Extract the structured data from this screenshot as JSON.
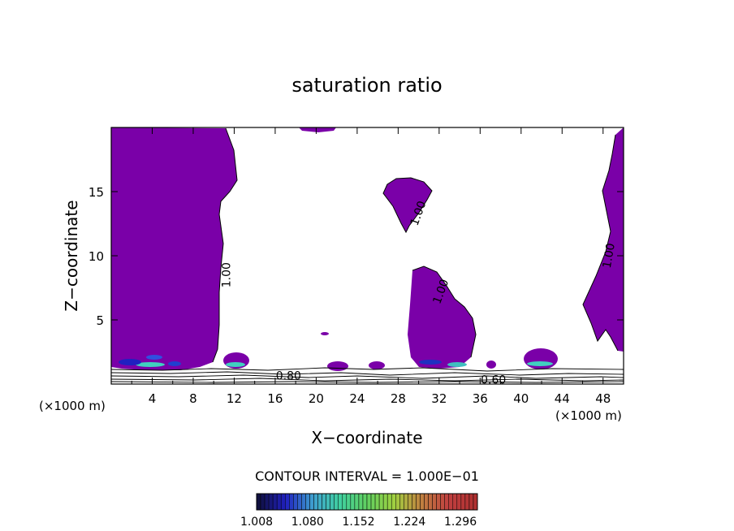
{
  "chart_data": {
    "type": "heatmap",
    "title": "saturation ratio",
    "xlabel": "X−coordinate",
    "ylabel": "Z−coordinate",
    "x_unit": "(×1000 m)",
    "z_unit": "(×1000 m)",
    "xlim": [
      0,
      50
    ],
    "ylim": [
      0,
      20
    ],
    "x_ticks": [
      4,
      8,
      12,
      16,
      20,
      24,
      28,
      32,
      36,
      40,
      44,
      48
    ],
    "y_ticks": [
      5,
      10,
      15
    ],
    "fill_color": "#7a00a8",
    "contour_interval_text": "CONTOUR INTERVAL = 1.000E−01",
    "contour_labels": [
      {
        "text": "1.00",
        "x": 11.3,
        "z": 8.5,
        "angle": -90
      },
      {
        "text": "1.00",
        "x": 30.0,
        "z": 13.3,
        "angle": -70
      },
      {
        "text": "1.00",
        "x": 32.2,
        "z": 7.2,
        "angle": -70
      },
      {
        "text": "1.00",
        "x": 48.6,
        "z": 10.0,
        "angle": -80
      },
      {
        "text": "0.80",
        "x": 17.3,
        "z": 0.6,
        "angle": 0
      },
      {
        "text": "0.60",
        "x": 37.3,
        "z": 0.3,
        "angle": 0
      }
    ],
    "colorbar": {
      "labels": [
        "1.008",
        "1.080",
        "1.152",
        "1.224",
        "1.296"
      ],
      "min": 1.008,
      "max": 1.32,
      "colors": [
        "#101040",
        "#2020c0",
        "#3fa0d0",
        "#40d0a0",
        "#60d060",
        "#a0d040",
        "#c08040",
        "#c04040",
        "#b03030"
      ]
    },
    "supersaturated_regions": [
      {
        "name": "left-column",
        "x_range": [
          0,
          12
        ],
        "z_range": [
          1,
          20
        ]
      },
      {
        "name": "top-blob",
        "x_range": [
          20.4,
          22
        ],
        "z_range": [
          19.5,
          20
        ]
      },
      {
        "name": "anvil-triangle",
        "x_range": [
          27,
          30.5
        ],
        "z_range": [
          12,
          16.3
        ]
      },
      {
        "name": "mid-cloud",
        "x_range": [
          29.4,
          35.4
        ],
        "z_range": [
          1.1,
          9
        ]
      },
      {
        "name": "right-column",
        "x_range": [
          44.8,
          50
        ],
        "z_range": [
          2.4,
          19.2
        ]
      }
    ]
  }
}
